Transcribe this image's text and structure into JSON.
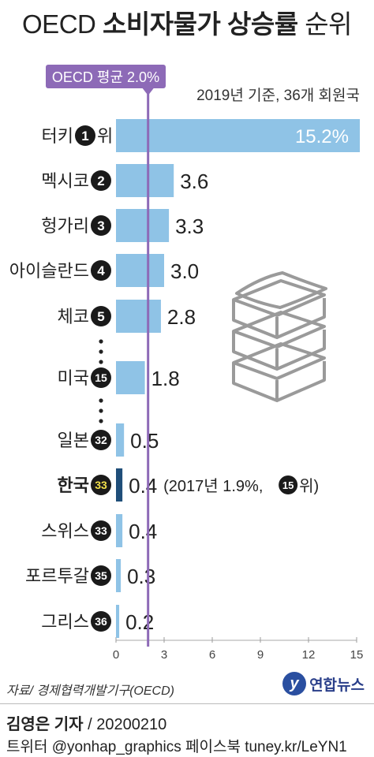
{
  "title": {
    "light": "OECD ",
    "bold": "소비자물가 상승률",
    "tail": " 순위"
  },
  "avg_label": "OECD 평균 2.0%",
  "basis": "2019년 기준, 36개 회원국",
  "source": "자료/ 경제협력개발기구(OECD)",
  "logo": {
    "text": "연합뉴스"
  },
  "credit": {
    "name": "김영은 기자",
    "date": "/ 20200210"
  },
  "social": "트위터 @yonhap_graphics  페이스북 tuney.kr/LeYN1",
  "korea_note": "(2017년 1.9%,",
  "korea_note_rank": "15",
  "korea_note_tail": "위)",
  "chart_data": {
    "type": "bar",
    "orientation": "horizontal",
    "categories": [
      "터키",
      "멕시코",
      "헝가리",
      "아이슬란드",
      "체코",
      "미국",
      "일본",
      "한국",
      "스위스",
      "포르투갈",
      "그리스"
    ],
    "ranks": [
      "1",
      "2",
      "3",
      "4",
      "5",
      "15",
      "32",
      "33",
      "33",
      "35",
      "36"
    ],
    "values": [
      15.2,
      3.6,
      3.3,
      3.0,
      2.8,
      1.8,
      0.5,
      0.4,
      0.4,
      0.3,
      0.2
    ],
    "value_labels": [
      "15.2%",
      "3.6",
      "3.3",
      "3.0",
      "2.8",
      "1.8",
      "0.5",
      "0.4",
      "0.4",
      "0.3",
      "0.2"
    ],
    "highlight": "한국",
    "average": 2.0,
    "xlim": [
      0,
      15
    ],
    "xticks": [
      "0",
      "3",
      "6",
      "9",
      "12",
      "15"
    ],
    "colors": {
      "bar": "#8fc3e6",
      "highlight_bar": "#1f4e79",
      "average_line": "#8d6ab7",
      "badge": "#1a1a1a",
      "highlight_badge_text": "#f2e04a"
    }
  }
}
